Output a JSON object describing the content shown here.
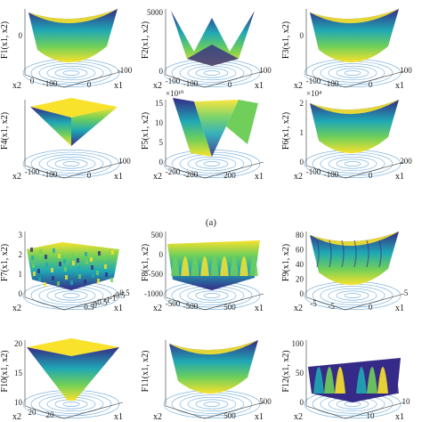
{
  "caption": "(a)",
  "panels": [
    {
      "id": "F1",
      "ylabel": "F1(x1, x2)",
      "shape": "bowl",
      "zticks": [
        "0"
      ],
      "x1ticks": [
        "0",
        "-100"
      ],
      "x2ticks": [
        "0",
        "-100"
      ],
      "x1": "x1",
      "x2": "x2"
    },
    {
      "id": "F2",
      "ylabel": "F2(x1, x2)",
      "shape": "spike",
      "zticks": [
        "5000",
        "0"
      ],
      "x1ticks": [
        "0",
        "100"
      ],
      "x2ticks": [
        "-100",
        "-100"
      ],
      "x1": "x1",
      "x2": "x2"
    },
    {
      "id": "F3",
      "ylabel": "F3(x1, x2)",
      "shape": "bowl",
      "zticks": [
        "0"
      ],
      "x1ticks": [
        "0",
        "100"
      ],
      "x2ticks": [
        "-100",
        "-100"
      ],
      "x1": "x1",
      "x2": "x2"
    },
    {
      "id": "F4",
      "ylabel": "F4(x1, x2)",
      "shape": "pyramid",
      "zticks": [],
      "x1ticks": [
        "0",
        "100"
      ],
      "x2ticks": [
        "-100",
        "-100"
      ],
      "x1": "x1",
      "x2": "x2"
    },
    {
      "id": "F5",
      "ylabel": "F5(x1, x2)",
      "shape": "valley",
      "exponent": "×10¹⁰",
      "zticks": [
        "15",
        "10",
        "5",
        "0"
      ],
      "x1ticks": [
        "200"
      ],
      "x2ticks": [
        "-200",
        "-200"
      ],
      "x1": "x1",
      "x2": "x2"
    },
    {
      "id": "F6",
      "ylabel": "F6(x1, x2)",
      "shape": "bowl",
      "exponent": "×10⁴",
      "zticks": [
        "2",
        "1",
        "0"
      ],
      "x1ticks": [
        "0",
        "200"
      ],
      "x2ticks": [
        "-100",
        "-100"
      ],
      "x1": "x1",
      "x2": "x2"
    },
    {
      "id": "F7",
      "ylabel": "F7(x1, x2)",
      "shape": "noisy",
      "zticks": [
        "3",
        "2",
        "1",
        "0"
      ],
      "x1ticks": [
        "0.5",
        "0",
        "-0.5",
        "-1",
        "-1",
        "-0.5",
        "0.5"
      ],
      "x2ticks": [],
      "x1": "x1",
      "x2": "x2"
    },
    {
      "id": "F8",
      "ylabel": "F8(x1, x2)",
      "shape": "wavy",
      "zticks": [
        "500",
        "0",
        "-500",
        "-1000"
      ],
      "x1ticks": [
        "500"
      ],
      "x2ticks": [
        "-500",
        "-500"
      ],
      "x1": "x1",
      "x2": "x2"
    },
    {
      "id": "F9",
      "ylabel": "F9(x1, x2)",
      "shape": "wavybowl",
      "zticks": [
        "80",
        "60",
        "40",
        "20",
        "0"
      ],
      "x1ticks": [
        "0",
        "5"
      ],
      "x2ticks": [
        "-5",
        "-5"
      ],
      "x1": "x1",
      "x2": "x2"
    },
    {
      "id": "F10",
      "ylabel": "F10(x1, x2)",
      "shape": "funnel",
      "zticks": [
        "20",
        "15",
        "10"
      ],
      "x1ticks": [],
      "x2ticks": [
        "20",
        "20"
      ],
      "x1": "x1",
      "x2": "x2"
    },
    {
      "id": "F11",
      "ylabel": "F11(x1, x2)",
      "shape": "bowl",
      "zticks": [],
      "x1ticks": [
        "500",
        "500"
      ],
      "x2ticks": [],
      "x1": "x1",
      "x2": "x2"
    },
    {
      "id": "F12",
      "ylabel": "F12(x1, x2)",
      "shape": "ridges",
      "zticks": [
        "100",
        "50",
        "0"
      ],
      "x1ticks": [
        "10",
        "10"
      ],
      "x2ticks": [],
      "x1": "x1",
      "x2": "x2"
    }
  ],
  "colors": {
    "blue": "#352a87",
    "cyan": "#1fa8b4",
    "green": "#6fcf5a",
    "yellow": "#f9e22b",
    "contour": "#6aa8d8"
  }
}
